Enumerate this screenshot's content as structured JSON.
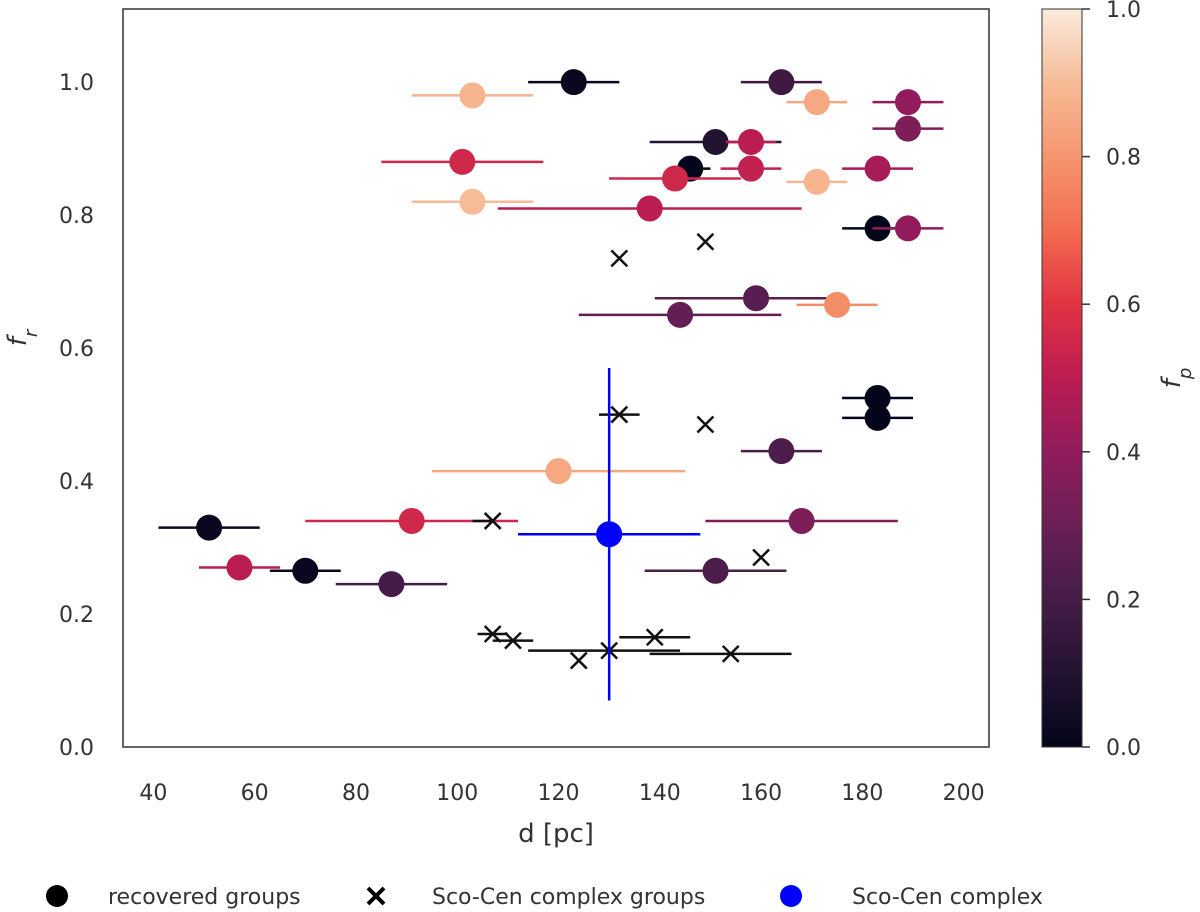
{
  "chart_data": {
    "type": "scatter",
    "xlabel": "d [pc]",
    "ylabel": "f_r",
    "xlim": [
      34,
      205
    ],
    "ylim": [
      0.0,
      1.11
    ],
    "xticks": [
      "40",
      "60",
      "80",
      "100",
      "120",
      "140",
      "160",
      "180",
      "200"
    ],
    "yticks": [
      "0.0",
      "0.2",
      "0.4",
      "0.6",
      "0.8",
      "1.0"
    ],
    "grid": false,
    "colorbar": {
      "label": "f_p",
      "range": [
        0.0,
        1.0
      ],
      "ticks": [
        "0.0",
        "0.2",
        "0.4",
        "0.6",
        "0.8",
        "1.0"
      ]
    },
    "legend": {
      "placement": "bottom",
      "entries": [
        {
          "label": "recovered groups",
          "marker": "circle",
          "color": "#000000"
        },
        {
          "label": "Sco-Cen complex groups",
          "marker": "x",
          "color": "#000000"
        },
        {
          "label": "Sco-Cen complex",
          "marker": "circle",
          "color": "#0000ff"
        }
      ]
    },
    "series": [
      {
        "name": "recovered groups",
        "marker": "circle",
        "points": [
          {
            "x": 123,
            "y": 1.0,
            "xerr_lo": 9,
            "xerr_hi": 9,
            "fp": 0.02
          },
          {
            "x": 164,
            "y": 1.0,
            "xerr_lo": 8,
            "xerr_hi": 8,
            "fp": 0.18
          },
          {
            "x": 103,
            "y": 0.98,
            "xerr_lo": 12,
            "xerr_hi": 12,
            "fp": 0.88
          },
          {
            "x": 171,
            "y": 0.97,
            "xerr_lo": 6,
            "xerr_hi": 6,
            "fp": 0.85
          },
          {
            "x": 189,
            "y": 0.97,
            "xerr_lo": 7,
            "xerr_hi": 7,
            "fp": 0.4
          },
          {
            "x": 189,
            "y": 0.93,
            "xerr_lo": 7,
            "xerr_hi": 7,
            "fp": 0.35
          },
          {
            "x": 151,
            "y": 0.91,
            "xerr_lo": 13,
            "xerr_hi": 13,
            "fp": 0.1
          },
          {
            "x": 158,
            "y": 0.91,
            "xerr_lo": 5,
            "xerr_hi": 5,
            "fp": 0.5
          },
          {
            "x": 101,
            "y": 0.88,
            "xerr_lo": 16,
            "xerr_hi": 16,
            "fp": 0.55
          },
          {
            "x": 146,
            "y": 0.87,
            "xerr_lo": 4,
            "xerr_hi": 4,
            "fp": 0.0
          },
          {
            "x": 158,
            "y": 0.87,
            "xerr_lo": 6,
            "xerr_hi": 6,
            "fp": 0.52
          },
          {
            "x": 183,
            "y": 0.87,
            "xerr_lo": 7,
            "xerr_hi": 7,
            "fp": 0.45
          },
          {
            "x": 143,
            "y": 0.855,
            "xerr_lo": 13,
            "xerr_hi": 13,
            "fp": 0.55
          },
          {
            "x": 171,
            "y": 0.85,
            "xerr_lo": 6,
            "xerr_hi": 6,
            "fp": 0.88
          },
          {
            "x": 103,
            "y": 0.82,
            "xerr_lo": 12,
            "xerr_hi": 12,
            "fp": 0.9
          },
          {
            "x": 138,
            "y": 0.81,
            "xerr_lo": 30,
            "xerr_hi": 30,
            "fp": 0.5
          },
          {
            "x": 183,
            "y": 0.78,
            "xerr_lo": 7,
            "xerr_hi": 7,
            "fp": 0.0
          },
          {
            "x": 189,
            "y": 0.78,
            "xerr_lo": 7,
            "xerr_hi": 7,
            "fp": 0.4
          },
          {
            "x": 159,
            "y": 0.675,
            "xerr_lo": 20,
            "xerr_hi": 14,
            "fp": 0.25
          },
          {
            "x": 175,
            "y": 0.665,
            "xerr_lo": 8,
            "xerr_hi": 8,
            "fp": 0.78
          },
          {
            "x": 144,
            "y": 0.65,
            "xerr_lo": 20,
            "xerr_hi": 20,
            "fp": 0.28
          },
          {
            "x": 183,
            "y": 0.525,
            "xerr_lo": 7,
            "xerr_hi": 7,
            "fp": 0.0
          },
          {
            "x": 183,
            "y": 0.495,
            "xerr_lo": 7,
            "xerr_hi": 7,
            "fp": 0.0
          },
          {
            "x": 164,
            "y": 0.445,
            "xerr_lo": 8,
            "xerr_hi": 8,
            "fp": 0.22
          },
          {
            "x": 120,
            "y": 0.415,
            "xerr_lo": 25,
            "xerr_hi": 25,
            "fp": 0.85
          },
          {
            "x": 91,
            "y": 0.34,
            "xerr_lo": 21,
            "xerr_hi": 21,
            "fp": 0.55
          },
          {
            "x": 168,
            "y": 0.34,
            "xerr_lo": 19,
            "xerr_hi": 19,
            "fp": 0.35
          },
          {
            "x": 51,
            "y": 0.33,
            "xerr_lo": 10,
            "xerr_hi": 10,
            "fp": 0.02
          },
          {
            "x": 57,
            "y": 0.27,
            "xerr_lo": 8,
            "xerr_hi": 8,
            "fp": 0.5
          },
          {
            "x": 70,
            "y": 0.265,
            "xerr_lo": 7,
            "xerr_hi": 7,
            "fp": 0.02
          },
          {
            "x": 151,
            "y": 0.265,
            "xerr_lo": 14,
            "xerr_hi": 14,
            "fp": 0.22
          },
          {
            "x": 87,
            "y": 0.245,
            "xerr_lo": 11,
            "xerr_hi": 11,
            "fp": 0.2
          }
        ]
      },
      {
        "name": "Sco-Cen complex groups",
        "marker": "x",
        "points": [
          {
            "x": 149,
            "y": 0.76,
            "xerr_lo": 0,
            "xerr_hi": 0
          },
          {
            "x": 132,
            "y": 0.735,
            "xerr_lo": 0,
            "xerr_hi": 0
          },
          {
            "x": 132,
            "y": 0.5,
            "xerr_lo": 4,
            "xerr_hi": 4
          },
          {
            "x": 149,
            "y": 0.485,
            "xerr_lo": 0,
            "xerr_hi": 0
          },
          {
            "x": 107,
            "y": 0.34,
            "xerr_lo": 4,
            "xerr_hi": 0
          },
          {
            "x": 160,
            "y": 0.285,
            "xerr_lo": 0,
            "xerr_hi": 0
          },
          {
            "x": 107,
            "y": 0.17,
            "xerr_lo": 3,
            "xerr_hi": 3
          },
          {
            "x": 111,
            "y": 0.16,
            "xerr_lo": 4,
            "xerr_hi": 4
          },
          {
            "x": 139,
            "y": 0.165,
            "xerr_lo": 7,
            "xerr_hi": 7
          },
          {
            "x": 130,
            "y": 0.145,
            "xerr_lo": 16,
            "xerr_hi": 14
          },
          {
            "x": 124,
            "y": 0.13,
            "xerr_lo": 0,
            "xerr_hi": 0
          },
          {
            "x": 154,
            "y": 0.14,
            "xerr_lo": 16,
            "xerr_hi": 12
          }
        ]
      },
      {
        "name": "Sco-Cen complex",
        "marker": "circle",
        "color": "#0000ff",
        "points": [
          {
            "x": 130,
            "y": 0.32,
            "xerr_lo": 18,
            "xerr_hi": 18,
            "yerr_lo": 0.25,
            "yerr_hi": 0.25
          }
        ]
      }
    ]
  }
}
